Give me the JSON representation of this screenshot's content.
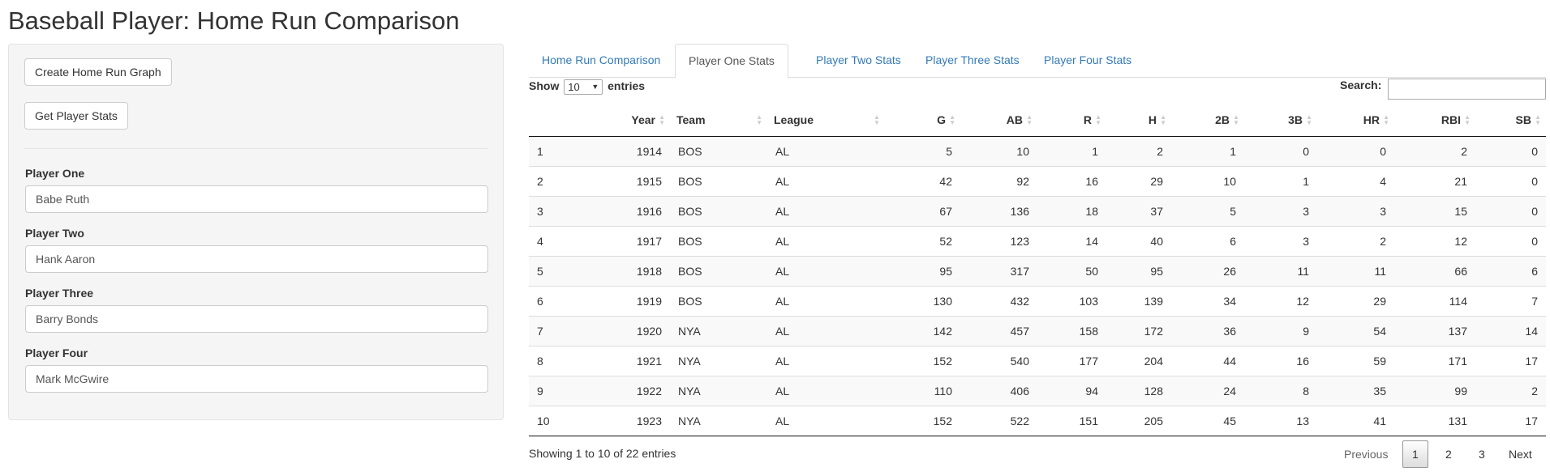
{
  "page_title": "Baseball Player: Home Run Comparison",
  "sidebar": {
    "create_graph_label": "Create Home Run Graph",
    "get_stats_label": "Get Player Stats",
    "players": [
      {
        "label": "Player One",
        "value": "Babe Ruth"
      },
      {
        "label": "Player Two",
        "value": "Hank Aaron"
      },
      {
        "label": "Player Three",
        "value": "Barry Bonds"
      },
      {
        "label": "Player Four",
        "value": "Mark McGwire"
      }
    ]
  },
  "tabs": [
    {
      "label": "Home Run Comparison",
      "active": false
    },
    {
      "label": "Player One Stats",
      "active": true
    },
    {
      "label": "Player Two Stats",
      "active": false
    },
    {
      "label": "Player Three Stats",
      "active": false
    },
    {
      "label": "Player Four Stats",
      "active": false
    }
  ],
  "table": {
    "show_label": "Show",
    "entries_label": "entries",
    "length_value": "10",
    "search_label": "Search:",
    "columns": [
      "",
      "Year",
      "Team",
      "League",
      "G",
      "AB",
      "R",
      "H",
      "2B",
      "3B",
      "HR",
      "RBI",
      "SB"
    ],
    "rows": [
      [
        "1",
        "1914",
        "BOS",
        "AL",
        "5",
        "10",
        "1",
        "2",
        "1",
        "0",
        "0",
        "2",
        "0"
      ],
      [
        "2",
        "1915",
        "BOS",
        "AL",
        "42",
        "92",
        "16",
        "29",
        "10",
        "1",
        "4",
        "21",
        "0"
      ],
      [
        "3",
        "1916",
        "BOS",
        "AL",
        "67",
        "136",
        "18",
        "37",
        "5",
        "3",
        "3",
        "15",
        "0"
      ],
      [
        "4",
        "1917",
        "BOS",
        "AL",
        "52",
        "123",
        "14",
        "40",
        "6",
        "3",
        "2",
        "12",
        "0"
      ],
      [
        "5",
        "1918",
        "BOS",
        "AL",
        "95",
        "317",
        "50",
        "95",
        "26",
        "11",
        "11",
        "66",
        "6"
      ],
      [
        "6",
        "1919",
        "BOS",
        "AL",
        "130",
        "432",
        "103",
        "139",
        "34",
        "12",
        "29",
        "114",
        "7"
      ],
      [
        "7",
        "1920",
        "NYA",
        "AL",
        "142",
        "457",
        "158",
        "172",
        "36",
        "9",
        "54",
        "137",
        "14"
      ],
      [
        "8",
        "1921",
        "NYA",
        "AL",
        "152",
        "540",
        "177",
        "204",
        "44",
        "16",
        "59",
        "171",
        "17"
      ],
      [
        "9",
        "1922",
        "NYA",
        "AL",
        "110",
        "406",
        "94",
        "128",
        "24",
        "8",
        "35",
        "99",
        "2"
      ],
      [
        "10",
        "1923",
        "NYA",
        "AL",
        "152",
        "522",
        "151",
        "205",
        "45",
        "13",
        "41",
        "131",
        "17"
      ]
    ],
    "info": "Showing 1 to 10 of 22 entries",
    "pagination": {
      "previous": "Previous",
      "pages": [
        "1",
        "2",
        "3"
      ],
      "current": "1",
      "next": "Next"
    }
  }
}
